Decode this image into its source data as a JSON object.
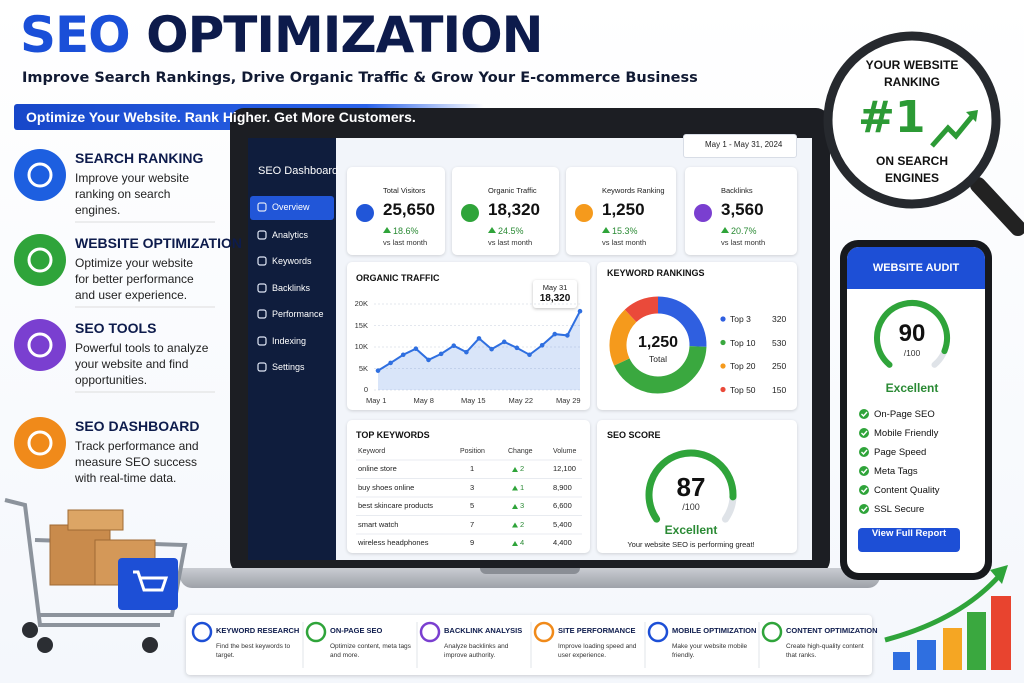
{
  "header": {
    "title_part1": "SEO",
    "title_part2": "OPTIMIZATION",
    "subtitle": "Improve Search Rankings, Drive Organic Traffic & Grow Your E-commerce Business",
    "banner": "Optimize Your Website. Rank Higher. Get More Customers."
  },
  "features": [
    {
      "title": "SEARCH RANKING",
      "description": "Improve your website ranking on search engines."
    },
    {
      "title": "WEBSITE OPTIMIZATION",
      "description": "Optimize your website for better performance and user experience."
    },
    {
      "title": "SEO TOOLS",
      "description": "Powerful tools to analyze your website and find opportunities."
    },
    {
      "title": "SEO DASHBOARD",
      "description": "Track performance and measure SEO success with real-time data."
    }
  ],
  "dashboard": {
    "title": "SEO Dashboard",
    "menu": [
      "Overview",
      "Analytics",
      "Keywords",
      "Backlinks",
      "Performance",
      "Indexing",
      "Settings"
    ],
    "date_range": "May 1 - May 31, 2024",
    "stats": [
      {
        "label": "Total Visitors",
        "value": "25,650",
        "change": "18.6%",
        "note": "vs last month"
      },
      {
        "label": "Organic Traffic",
        "value": "18,320",
        "change": "24.5%",
        "note": "vs last month"
      },
      {
        "label": "Keywords Ranking",
        "value": "1,250",
        "change": "15.3%",
        "note": "vs last month"
      },
      {
        "label": "Backlinks",
        "value": "3,560",
        "change": "20.7%",
        "note": "vs last month"
      }
    ],
    "organic_traffic": {
      "type": "line",
      "title": "ORGANIC TRAFFIC",
      "values": [
        4500,
        6300,
        8200,
        9600,
        7000,
        8400,
        10300,
        8800,
        12000,
        9500,
        11200,
        9800,
        8200,
        10400,
        13000,
        12700,
        18320
      ],
      "ylim": [
        0,
        20000
      ],
      "yticks": [
        0,
        {
          "value": 5000,
          "label": "5K"
        },
        {
          "value": 10000,
          "label": "10K"
        },
        {
          "value": 15000,
          "label": "15K"
        },
        {
          "value": 20000,
          "label": "20K"
        }
      ],
      "x_labels": [
        "May 1",
        "May 8",
        "May 15",
        "May 22",
        "May 29"
      ],
      "callout": {
        "date": "May 31",
        "value_label": "18,320"
      },
      "color": "#2f6fe0"
    },
    "keyword_rankings": {
      "type": "donut",
      "title": "KEYWORD RANKINGS",
      "total_label": "1,250",
      "total_caption": "Total",
      "categories": [
        "Top 3",
        "Top 10",
        "Top 20",
        "Top 50"
      ],
      "values": [
        320,
        530,
        250,
        150
      ],
      "colors": [
        "#2f5fe0",
        "#3aa83f",
        "#f59a1c",
        "#ea4a3a"
      ]
    },
    "top_keywords": {
      "title": "TOP KEYWORDS",
      "columns": [
        "Keyword",
        "Position",
        "Change",
        "Volume"
      ],
      "rows": [
        [
          "online store",
          "1",
          "2",
          "12,100"
        ],
        [
          "buy shoes online",
          "3",
          "1",
          "8,900"
        ],
        [
          "best skincare products",
          "5",
          "3",
          "6,600"
        ],
        [
          "smart watch",
          "7",
          "2",
          "5,400"
        ],
        [
          "wireless headphones",
          "9",
          "4",
          "4,400"
        ]
      ]
    },
    "seo_score": {
      "title": "SEO SCORE",
      "score": 87,
      "max": {
        "value": 100,
        "label": "/100"
      },
      "rating": "Excellent",
      "message": "Your website SEO is performing great!"
    }
  },
  "ranking_badge": {
    "line1": "YOUR WEBSITE",
    "line2": "RANKING",
    "rank": "#1",
    "line3": "ON SEARCH",
    "line4": "ENGINES"
  },
  "audit": {
    "title": "WEBSITE AUDIT",
    "score": 90,
    "max": {
      "value": 100,
      "label": "/100"
    },
    "rating": "Excellent",
    "checks": [
      "On-Page SEO",
      "Mobile Friendly",
      "Page Speed",
      "Meta Tags",
      "Content Quality",
      "SSL Secure"
    ],
    "button": "View Full Report"
  },
  "services": [
    {
      "title": "KEYWORD RESEARCH",
      "description": "Find the best keywords to target."
    },
    {
      "title": "ON-PAGE SEO",
      "description": "Optimize content, meta tags and more."
    },
    {
      "title": "BACKLINK ANALYSIS",
      "description": "Analyze backlinks and improve authority."
    },
    {
      "title": "SITE PERFORMANCE",
      "description": "Improve loading speed and user experience."
    },
    {
      "title": "MOBILE OPTIMIZATION",
      "description": "Make your website mobile friendly."
    },
    {
      "title": "CONTENT OPTIMIZATION",
      "description": "Create high-quality content that ranks."
    }
  ]
}
